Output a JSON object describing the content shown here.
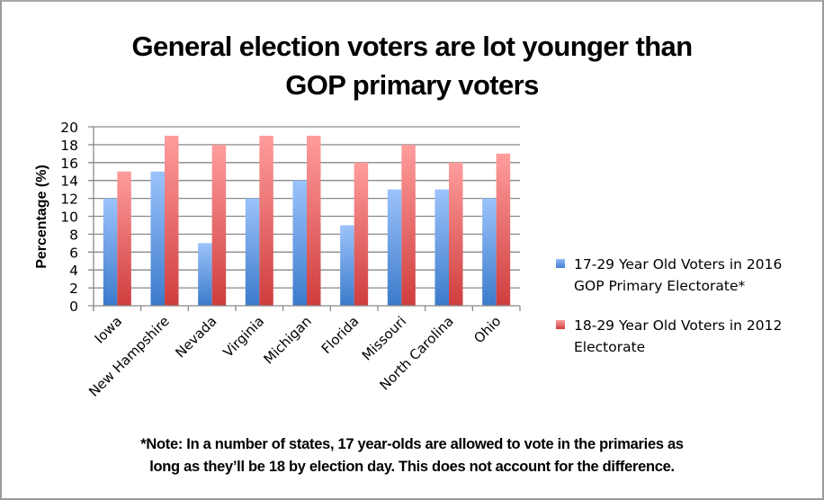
{
  "chart_data": {
    "type": "bar",
    "title": "General election voters are lot younger than GOP primary voters",
    "title_lines": [
      "General election voters are lot younger than",
      "GOP primary voters"
    ],
    "xlabel": "",
    "ylabel": "Percentage (%)",
    "ylim": [
      0,
      20
    ],
    "ytick_step": 2,
    "yticks": [
      "0",
      "2",
      "4",
      "6",
      "8",
      "10",
      "12",
      "14",
      "16",
      "18",
      "20"
    ],
    "grid": true,
    "legend_position": "right",
    "categories": [
      "Iowa",
      "New Hampshire",
      "Nevada",
      "Virginia",
      "Michigan",
      "Florida",
      "Missouri",
      "North Carolina",
      "Ohio"
    ],
    "series": [
      {
        "name": "17-29 Year Old Voters in 2016 GOP  Primary Electorate*",
        "legend_lines": [
          "17-29 Year Old Voters in 2016",
          "GOP  Primary Electorate*"
        ],
        "color": "#4a86d6",
        "values": [
          12,
          15,
          7,
          12,
          14,
          9,
          13,
          13,
          12
        ]
      },
      {
        "name": "18-29 Year Old Voters in 2012 Electorate",
        "legend_lines": [
          "18-29 Year Old Voters in 2012",
          "Electorate"
        ],
        "color": "#d94545",
        "values": [
          15,
          19,
          18,
          19,
          19,
          16,
          18,
          16,
          17
        ]
      }
    ],
    "annotation": [
      "*Note: In a number of states, 17 year-olds are allowed to vote in the primaries as",
      "long as they’ll be 18 by election day. This does not account for the difference."
    ]
  }
}
